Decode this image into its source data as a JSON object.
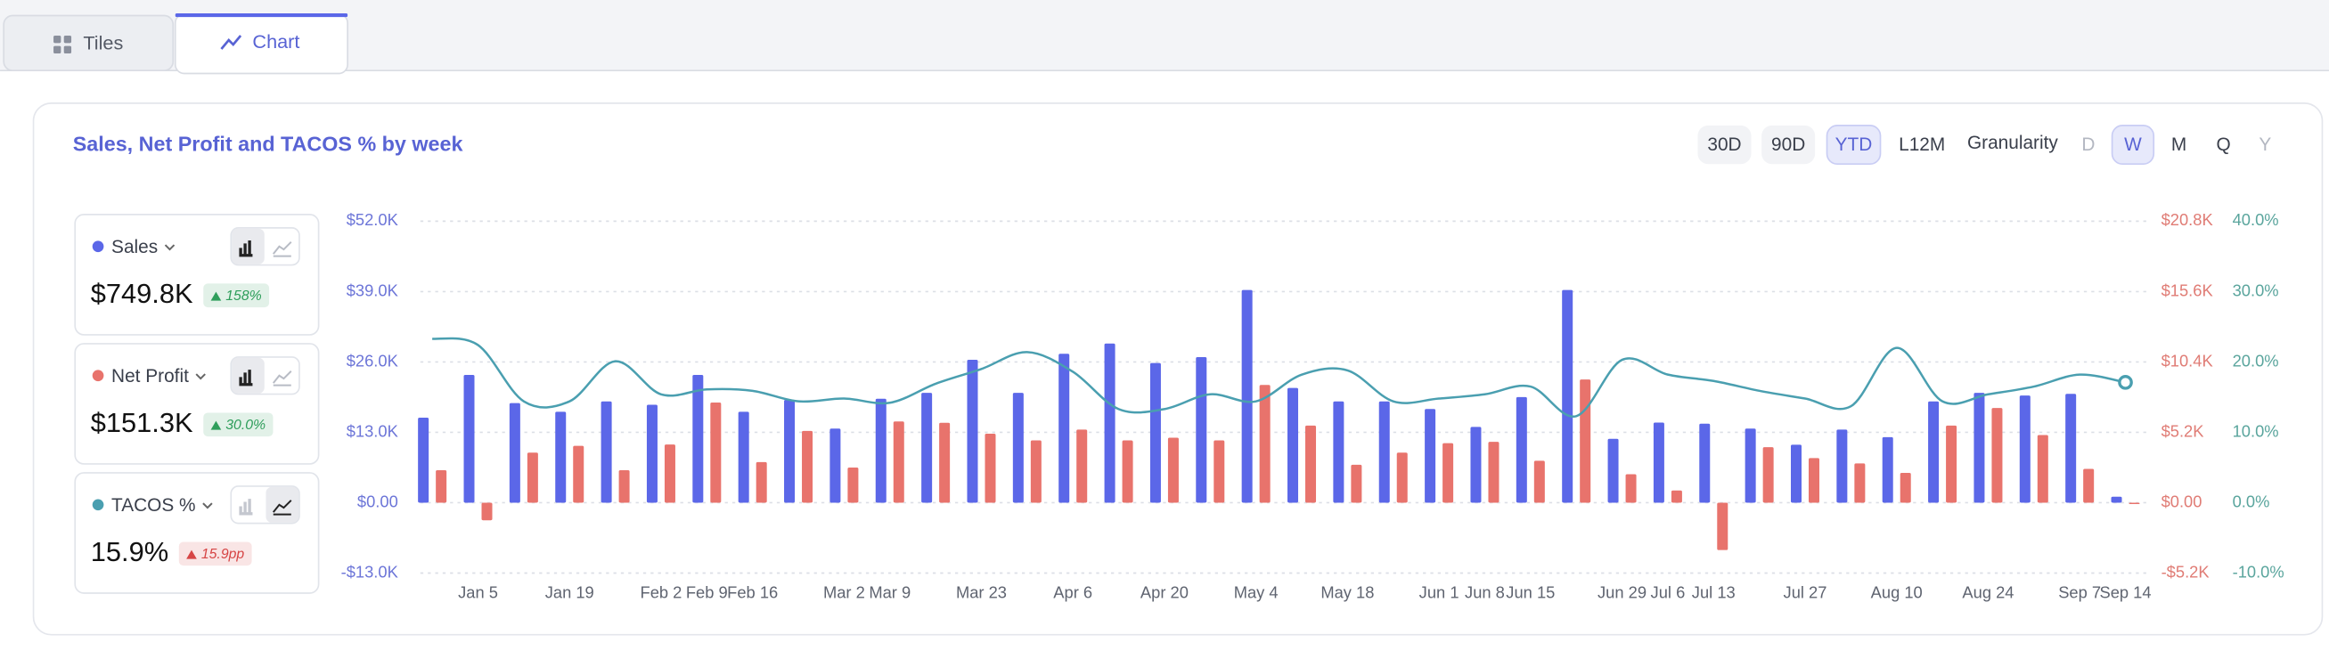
{
  "tabs": [
    "Tiles",
    "Chart"
  ],
  "ranges": {
    "options": [
      "30D",
      "90D",
      "YTD",
      "L12M"
    ],
    "selected": 2
  },
  "granularity": {
    "label": "Granularity",
    "options": [
      "D",
      "W",
      "M",
      "Q",
      "Y"
    ],
    "selected": 1,
    "disabled": [
      0,
      4
    ]
  },
  "metrics": [
    {
      "value": "$749.8K",
      "change": "158%",
      "badge_color": "#2f9e5b"
    },
    {
      "value": "$151.3K",
      "change": "30.0%",
      "badge_color": "#2f9e5b"
    },
    {
      "value": "15.9%",
      "change": "15.9pp",
      "badge_color": "#d64545"
    }
  ],
  "chart_data": {
    "type": "bar",
    "title": "Sales, Net Profit and TACOS % by week",
    "categories": [
      null,
      "Jan 5",
      null,
      "Jan 19",
      null,
      "Feb 2",
      "Feb 9",
      "Feb 16",
      null,
      "Mar 2",
      "Mar 9",
      null,
      "Mar 23",
      null,
      "Apr 6",
      null,
      "Apr 20",
      null,
      "May 4",
      null,
      "May 18",
      null,
      "Jun 1",
      "Jun 8",
      "Jun 15",
      null,
      "Jun 29",
      "Jul 6",
      "Jul 13",
      null,
      "Jul 27",
      null,
      "Aug 10",
      null,
      "Aug 24",
      null,
      "Sep 7",
      "Sep 14"
    ],
    "series": [
      {
        "name": "Sales",
        "type": "bar",
        "color": "#5b67e8",
        "values": [
          15700,
          23600,
          18400,
          16800,
          18700,
          18100,
          23600,
          16800,
          19000,
          13700,
          19200,
          20300,
          26400,
          20300,
          27500,
          29400,
          25800,
          26900,
          39300,
          21200,
          18700,
          18700,
          17300,
          14000,
          19500,
          39300,
          11800,
          14800,
          14600,
          13700,
          10700,
          13500,
          12100,
          18700,
          20300,
          19800,
          20100,
          1100
        ]
      },
      {
        "name": "Net Profit",
        "type": "bar",
        "color": "#e8736c",
        "axis": "y2",
        "values": [
          2400,
          -1300,
          3700,
          4200,
          2400,
          4300,
          7400,
          3000,
          5300,
          2600,
          6000,
          5900,
          5100,
          4600,
          5400,
          4600,
          4800,
          4600,
          8700,
          5700,
          2800,
          3700,
          4400,
          4500,
          3100,
          9100,
          2100,
          900,
          -3500,
          4100,
          3300,
          2900,
          2200,
          5700,
          7000,
          5000,
          2500,
          -100
        ]
      },
      {
        "name": "TACOS %",
        "type": "line",
        "color": "#4a9fb0",
        "axis": "y3",
        "values": [
          23.3,
          22.4,
          14.4,
          14.4,
          20.1,
          15.4,
          16.1,
          15.9,
          14.4,
          14.8,
          14.2,
          16.9,
          19.0,
          21.4,
          18.6,
          13.3,
          13.3,
          15.4,
          14.4,
          18.2,
          18.8,
          14.4,
          14.8,
          15.4,
          16.5,
          12.3,
          20.3,
          18.2,
          17.3,
          15.9,
          14.8,
          13.7,
          22.0,
          14.4,
          15.4,
          16.5,
          18.2,
          17.1
        ]
      }
    ],
    "ylim": [
      -13000,
      52000
    ],
    "yticks": [
      {
        "value": -13000,
        "label": "-$13.0K"
      },
      {
        "value": 0,
        "label": "$0.00"
      },
      {
        "value": 13000,
        "label": "$13.0K"
      },
      {
        "value": 26000,
        "label": "$26.0K"
      },
      {
        "value": 39000,
        "label": "$39.0K"
      },
      {
        "value": 52000,
        "label": "$52.0K"
      }
    ],
    "y2lim": [
      -5200,
      20800
    ],
    "y2ticks": [
      {
        "value": -5200,
        "label": "-$5.2K"
      },
      {
        "value": 0,
        "label": "$0.00"
      },
      {
        "value": 5200,
        "label": "$5.2K"
      },
      {
        "value": 10400,
        "label": "$10.4K"
      },
      {
        "value": 15600,
        "label": "$15.6K"
      },
      {
        "value": 20800,
        "label": "$20.8K"
      }
    ],
    "y3lim": [
      -10,
      40
    ],
    "y3ticks": [
      {
        "value": -10,
        "label": "-10.0%"
      },
      {
        "value": 0,
        "label": "0.0%"
      },
      {
        "value": 10,
        "label": "10.0%"
      },
      {
        "value": 20,
        "label": "20.0%"
      },
      {
        "value": 30,
        "label": "30.0%"
      },
      {
        "value": 40,
        "label": "40.0%"
      }
    ],
    "grid": true
  }
}
